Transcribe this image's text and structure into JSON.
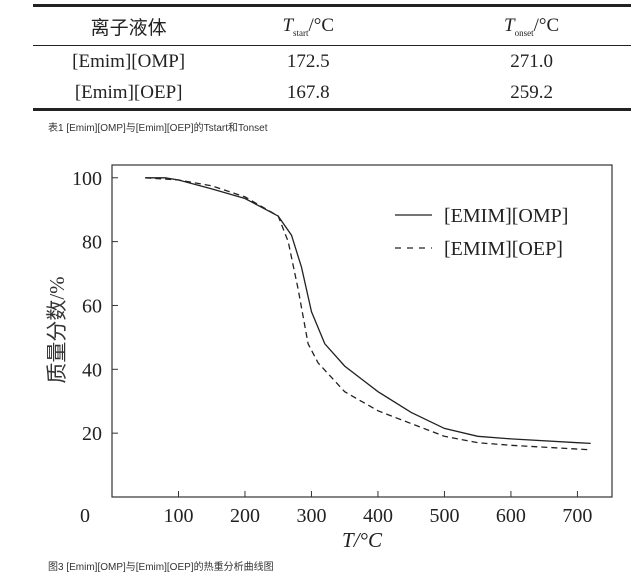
{
  "table": {
    "headers": [
      {
        "main": "离子液体"
      },
      {
        "main": "T",
        "sub": "start",
        "unit": "/°C"
      },
      {
        "main": "T",
        "sub": "onset",
        "unit": "/°C"
      }
    ],
    "rows": [
      [
        "[Emim][OMP]",
        "172.5",
        "271.0"
      ],
      [
        "[Emim][OEP]",
        "167.8",
        "259.2"
      ]
    ],
    "caption": "表1 [Emim][OMP]与[Emim][OEP]的Tstart和Tonset"
  },
  "chart_data": {
    "type": "line",
    "xlabel": "T/°C",
    "ylabel": "质量分数/%",
    "xlim": [
      0,
      752
    ],
    "ylim": [
      0,
      104
    ],
    "xticks": [
      0,
      100,
      200,
      300,
      400,
      500,
      600,
      700
    ],
    "yticks": [
      20,
      40,
      60,
      80,
      100
    ],
    "legend": "top-right",
    "grid": false,
    "series": [
      {
        "name": "[EMIM][OMP]",
        "style": "solid",
        "x": [
          50,
          80,
          100,
          150,
          200,
          250,
          270,
          285,
          300,
          320,
          350,
          400,
          450,
          500,
          550,
          600,
          700,
          720
        ],
        "y": [
          100,
          100,
          99.3,
          96.5,
          93.5,
          88,
          82,
          72,
          58,
          48,
          41,
          33,
          26.5,
          21.5,
          19,
          18.2,
          17,
          16.8
        ]
      },
      {
        "name": "[EMIM][OEP]",
        "style": "dashed",
        "x": [
          50,
          100,
          150,
          200,
          250,
          265,
          280,
          295,
          310,
          350,
          400,
          450,
          500,
          550,
          600,
          720
        ],
        "y": [
          100,
          99.3,
          97.5,
          94,
          88,
          80,
          65,
          48,
          42,
          33,
          27,
          23,
          19,
          17,
          16.2,
          14.8
        ]
      }
    ],
    "caption": "图3 [Emim][OMP]与[Emim][OEP]的热重分析曲线图"
  }
}
